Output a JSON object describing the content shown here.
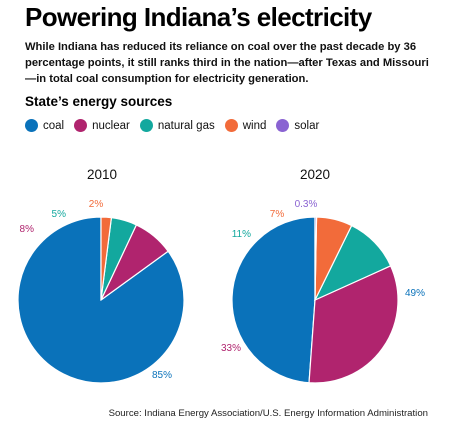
{
  "title": "Powering Indiana’s electricity",
  "intro": "While Indiana has reduced its reliance on coal over the past decade by 36 percentage points, it still ranks third in the nation—after Texas and Missouri—in total coal consumption for electricity generation.",
  "legend_title": "State’s energy sources",
  "source": "Source: Indiana Energy Association/U.S. Energy Information Administration",
  "chart_data": {
    "type": "pie",
    "categories": [
      "coal",
      "nuclear",
      "natural gas",
      "wind",
      "solar"
    ],
    "colors": [
      "#0A72BA",
      "#B0246E",
      "#13A89E",
      "#F26B3A",
      "#8A63D2"
    ],
    "pies": [
      {
        "title": "2010",
        "values": [
          85,
          8,
          5,
          2,
          0
        ],
        "labels": [
          "85%",
          "8%",
          "5%",
          "2%",
          ""
        ]
      },
      {
        "title": "2020",
        "values": [
          49,
          33,
          11,
          7,
          0.3
        ],
        "labels": [
          "49%",
          "33%",
          "11%",
          "7%",
          "0.3%"
        ]
      }
    ]
  }
}
